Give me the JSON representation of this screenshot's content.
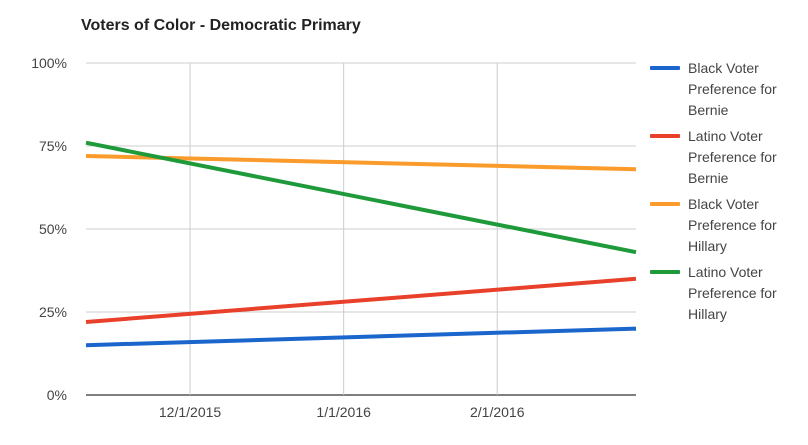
{
  "chart_data": {
    "type": "line",
    "title": "Voters of Color - Democratic Primary",
    "xlabel": "",
    "ylabel": "",
    "x_ticks": [
      "12/1/2015",
      "1/1/2016",
      "2/1/2016"
    ],
    "x_range": [
      "2015-11-10",
      "2016-02-29"
    ],
    "y_ticks": [
      "0%",
      "25%",
      "50%",
      "75%",
      "100%"
    ],
    "ylim": [
      0,
      100
    ],
    "grid": true,
    "legend_position": "right",
    "series": [
      {
        "name": "Black Voter Preference for Bernie",
        "color": "#1a66cc",
        "points": [
          {
            "x": "2015-11-10",
            "y": 15
          },
          {
            "x": "2016-02-29",
            "y": 20
          }
        ]
      },
      {
        "name": "Latino Voter Preference for Bernie",
        "color": "#e8402a",
        "points": [
          {
            "x": "2015-11-10",
            "y": 22
          },
          {
            "x": "2016-02-29",
            "y": 35
          }
        ]
      },
      {
        "name": "Black Voter Preference for Hillary",
        "color": "#fa9b2c",
        "points": [
          {
            "x": "2015-11-10",
            "y": 72
          },
          {
            "x": "2016-02-29",
            "y": 68
          }
        ]
      },
      {
        "name": "Latino Voter Preference for Hillary",
        "color": "#1f9a3a",
        "points": [
          {
            "x": "2015-11-10",
            "y": 76
          },
          {
            "x": "2016-02-29",
            "y": 43
          }
        ]
      }
    ]
  }
}
